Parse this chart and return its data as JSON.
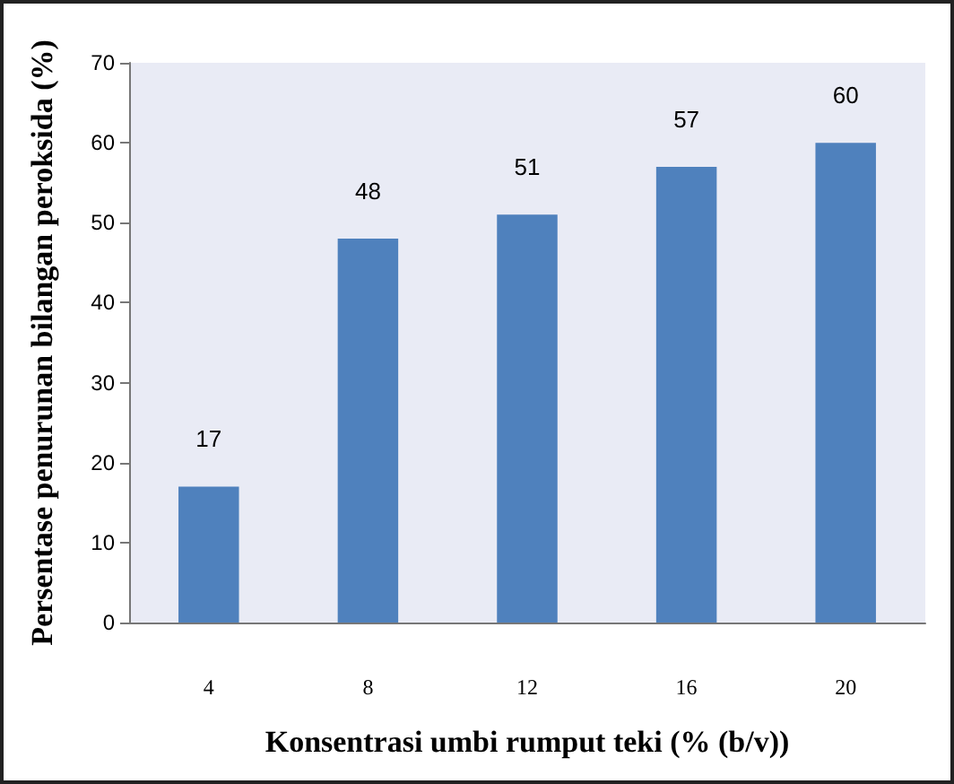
{
  "chart_data": {
    "type": "bar",
    "xlabel": "Konsentrasi umbi rumput teki (% (b/v))",
    "ylabel": "Persentase penurunan bilangan peroksida (%)",
    "categories": [
      "4",
      "8",
      "12",
      "16",
      "20"
    ],
    "values": [
      17,
      48,
      51,
      57,
      60
    ],
    "color": "#4f81bd",
    "ylim": [
      0,
      70
    ],
    "yticks": [
      0,
      10,
      20,
      30,
      40,
      50,
      60,
      70
    ],
    "data_labels": true
  }
}
